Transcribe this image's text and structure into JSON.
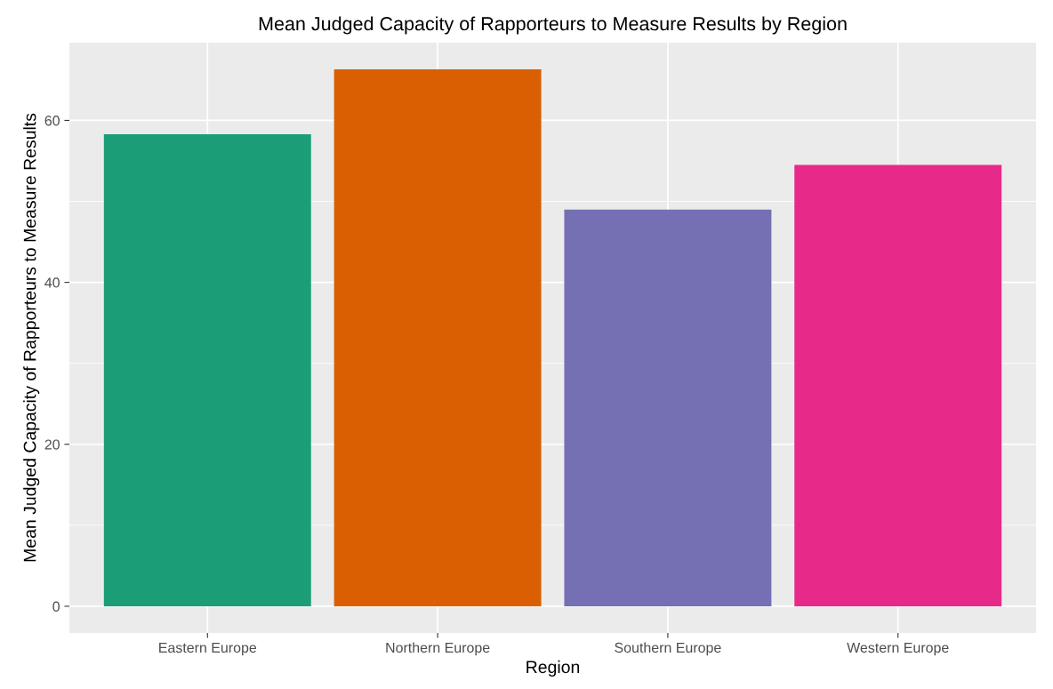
{
  "chart_data": {
    "type": "bar",
    "title": "Mean Judged Capacity of Rapporteurs to Measure Results by Region",
    "xlabel": "Region",
    "ylabel": "Mean Judged Capacity of Rapporteurs to Measure Results",
    "categories": [
      "Eastern Europe",
      "Northern Europe",
      "Southern Europe",
      "Western Europe"
    ],
    "values": [
      58.3,
      66.3,
      49.0,
      54.5
    ],
    "colors": [
      "#1b9e77",
      "#d95f02",
      "#7570b3",
      "#e7298a"
    ],
    "ylim": [
      -3.3,
      69.6
    ],
    "yticks": [
      0,
      20,
      40,
      60
    ],
    "grid": true
  }
}
